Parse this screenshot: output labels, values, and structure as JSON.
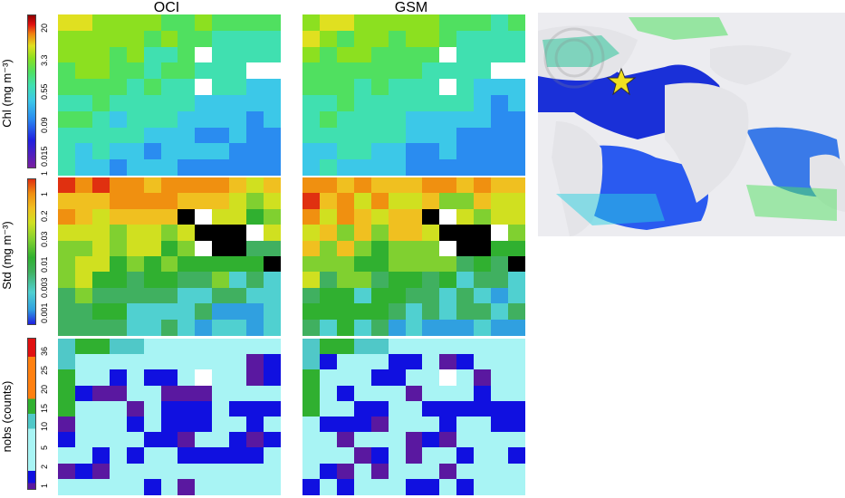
{
  "columns": [
    "OCI",
    "GSM"
  ],
  "chart_data": {
    "type": "heatmap",
    "panels": [
      {
        "row": "chl",
        "ylabel": "Chl (mg m⁻³)",
        "colorbar_ticks": [
          "20",
          "3.3",
          "0.55",
          "0.09",
          "0.015"
        ],
        "colorbar_min_label": "1"
      },
      {
        "row": "std",
        "ylabel": "Std (mg m⁻³)",
        "colorbar_ticks": [
          "1",
          "0.2",
          "0.03",
          "0.01",
          "0.003",
          "0.001"
        ],
        "colorbar_min_label": ""
      },
      {
        "row": "nobs",
        "ylabel": "nobs (counts)",
        "colorbar_ticks": [
          "36",
          "25",
          "20",
          "15",
          "10",
          "5",
          "2",
          "1"
        ],
        "colorbar_min_label": ""
      }
    ],
    "grid": {
      "rows": 10,
      "cols": 13
    },
    "colors": {
      "chl": [
        "#7a1fa0",
        "#2020e0",
        "#2a8cf0",
        "#3cc8e8",
        "#40e0b0",
        "#50e060",
        "#8ce020",
        "#e0e020",
        "#f08010",
        "#e01010",
        "#900000"
      ],
      "std": [
        "#2020e0",
        "#30a0e0",
        "#50d0d0",
        "#40b060",
        "#30b030",
        "#80d030",
        "#d0e020",
        "#f0c020",
        "#f09010",
        "#e03010"
      ],
      "nobs": [
        "#5a18a0",
        "#1010e0",
        "#a8f4f4",
        "#50c8c8",
        "#30b030",
        "#ff8010",
        "#e01010"
      ],
      "missing": "#ffffff",
      "saturated": "#000000"
    }
  },
  "map": {
    "marker": "star"
  }
}
